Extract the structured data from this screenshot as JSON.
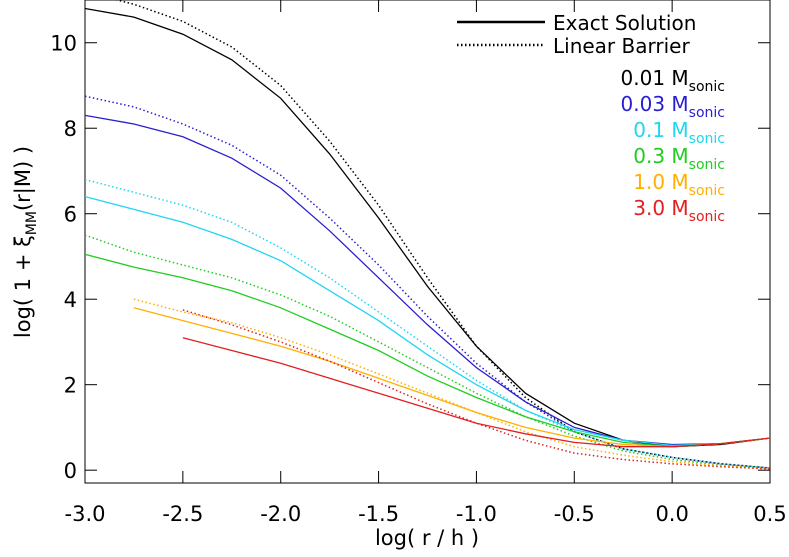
{
  "chart_data": {
    "type": "line",
    "ylabel": {
      "main": "log( 1 + ξ",
      "sub": "MM",
      "rest": "(r|M) )"
    },
    "xlabel": "log( r / h )",
    "xlim": [
      -3.0,
      0.5
    ],
    "ylim": [
      -0.3,
      11.0
    ],
    "xticks": [
      {
        "value": -3.0,
        "label": "-3.0"
      },
      -2.5,
      {
        "value": -2.0,
        "label": "-2.0"
      },
      -1.5,
      {
        "value": -1.0,
        "label": "-1.0"
      },
      -0.5,
      {
        "value": 0.0,
        "label": "0.0"
      },
      0.5
    ],
    "yticks": [
      0,
      2,
      4,
      6,
      8,
      10
    ],
    "styles": {
      "exact": "Exact Solution",
      "linear": "Linear Barrier"
    },
    "x": [
      -3.0,
      -2.75,
      -2.5,
      -2.25,
      -2.0,
      -1.75,
      -1.5,
      -1.25,
      -1.0,
      -0.75,
      -0.5,
      -0.25,
      0.0,
      0.25,
      0.5
    ],
    "series": [
      {
        "name": "0.01 M",
        "name_sub": "sonic",
        "color": "#000000",
        "exact": [
          10.8,
          10.6,
          10.2,
          9.6,
          8.7,
          7.4,
          5.9,
          4.3,
          2.9,
          1.8,
          1.1,
          0.7,
          0.55,
          0.6,
          0.75
        ],
        "linear": [
          11.2,
          10.9,
          10.5,
          9.9,
          9.0,
          7.7,
          6.2,
          4.5,
          2.9,
          1.7,
          0.9,
          0.5,
          0.3,
          0.15,
          0.05
        ]
      },
      {
        "name": "0.03 M",
        "name_sub": "sonic",
        "color": "#2a1fd0",
        "exact": [
          8.3,
          8.1,
          7.8,
          7.3,
          6.6,
          5.6,
          4.5,
          3.4,
          2.4,
          1.6,
          1.0,
          0.7,
          0.6,
          0.62,
          0.75
        ],
        "linear": [
          8.75,
          8.5,
          8.1,
          7.6,
          6.9,
          5.9,
          4.8,
          3.6,
          2.5,
          1.6,
          0.9,
          0.5,
          0.3,
          0.15,
          0.05
        ]
      },
      {
        "name": "0.1 M",
        "name_sub": "sonic",
        "color": "#22d5f0",
        "exact": [
          6.4,
          6.1,
          5.8,
          5.4,
          4.9,
          4.2,
          3.5,
          2.7,
          2.0,
          1.4,
          0.95,
          0.7,
          0.58,
          0.62,
          0.75
        ],
        "linear": [
          6.8,
          6.5,
          6.2,
          5.8,
          5.2,
          4.5,
          3.7,
          2.9,
          2.1,
          1.4,
          0.9,
          0.5,
          0.3,
          0.15,
          0.05
        ]
      },
      {
        "name": "0.3 M",
        "name_sub": "sonic",
        "color": "#22cc22",
        "exact": [
          5.05,
          4.75,
          4.5,
          4.2,
          3.8,
          3.3,
          2.8,
          2.2,
          1.7,
          1.25,
          0.9,
          0.65,
          0.55,
          0.62,
          0.75
        ],
        "linear": [
          5.5,
          5.1,
          4.8,
          4.5,
          4.1,
          3.6,
          3.0,
          2.4,
          1.8,
          1.25,
          0.8,
          0.45,
          0.25,
          0.12,
          0.05
        ]
      },
      {
        "name": "1.0 M",
        "name_sub": "sonic",
        "color": "#ffb000",
        "exact": [
          null,
          3.8,
          3.5,
          3.2,
          2.9,
          2.55,
          2.15,
          1.75,
          1.35,
          1.0,
          0.75,
          0.6,
          0.55,
          0.62,
          0.75
        ],
        "linear": [
          null,
          4.0,
          3.7,
          3.45,
          3.1,
          2.7,
          2.25,
          1.8,
          1.35,
          0.9,
          0.55,
          0.35,
          0.2,
          0.1,
          0.03
        ]
      },
      {
        "name": "3.0 M",
        "name_sub": "sonic",
        "color": "#e02020",
        "exact": [
          null,
          null,
          3.1,
          2.8,
          2.5,
          2.15,
          1.8,
          1.45,
          1.1,
          0.85,
          0.65,
          0.55,
          0.55,
          0.62,
          0.75
        ],
        "linear": [
          null,
          null,
          3.75,
          3.4,
          3.0,
          2.55,
          2.05,
          1.55,
          1.1,
          0.7,
          0.4,
          0.25,
          0.15,
          0.08,
          0.03
        ]
      }
    ]
  }
}
